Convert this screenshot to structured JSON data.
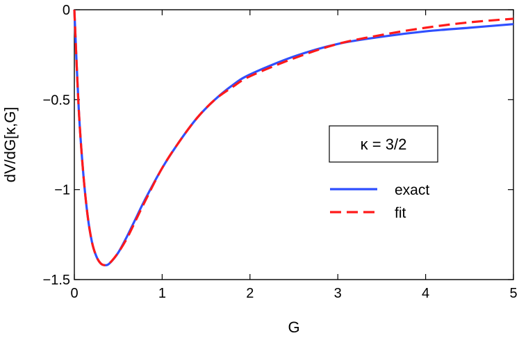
{
  "chart_data": {
    "type": "line",
    "title": "",
    "xlabel": "G",
    "ylabel": "dV/dG[κ,G]",
    "xlim": [
      0,
      5
    ],
    "ylim": [
      -1.5,
      0
    ],
    "x_ticks": [
      0,
      1,
      2,
      3,
      4,
      5
    ],
    "x_tick_labels": [
      "0",
      "1",
      "2",
      "3",
      "4",
      "5"
    ],
    "y_ticks": [
      0,
      -0.5,
      -1,
      -1.5
    ],
    "y_tick_labels": [
      "0",
      "−0.5",
      "−1",
      "−1.5"
    ],
    "grid": false,
    "legend_position": "right",
    "annotation": "κ = 3/2",
    "series": [
      {
        "name": "exact",
        "color": "#2f4fff",
        "style": "solid",
        "x": [
          0,
          0.05,
          0.1,
          0.15,
          0.2,
          0.25,
          0.3,
          0.35,
          0.4,
          0.5,
          0.6,
          0.7,
          0.8,
          1.0,
          1.2,
          1.4,
          1.6,
          1.8,
          2.0,
          2.5,
          3.0,
          3.5,
          4.0,
          4.5,
          5.0
        ],
        "y": [
          0,
          -0.55,
          -0.9,
          -1.14,
          -1.29,
          -1.37,
          -1.41,
          -1.42,
          -1.41,
          -1.35,
          -1.26,
          -1.16,
          -1.06,
          -0.88,
          -0.73,
          -0.6,
          -0.5,
          -0.42,
          -0.36,
          -0.26,
          -0.19,
          -0.15,
          -0.12,
          -0.1,
          -0.08
        ]
      },
      {
        "name": "fit",
        "color": "#ff1a1a",
        "style": "dashed",
        "x": [
          0,
          0.05,
          0.1,
          0.15,
          0.2,
          0.25,
          0.3,
          0.35,
          0.4,
          0.5,
          0.6,
          0.7,
          0.8,
          1.0,
          1.2,
          1.4,
          1.6,
          1.8,
          2.0,
          2.5,
          3.0,
          3.5,
          4.0,
          4.5,
          5.0
        ],
        "y": [
          0,
          -0.55,
          -0.9,
          -1.14,
          -1.29,
          -1.37,
          -1.41,
          -1.42,
          -1.41,
          -1.35,
          -1.27,
          -1.17,
          -1.07,
          -0.88,
          -0.73,
          -0.6,
          -0.5,
          -0.43,
          -0.37,
          -0.27,
          -0.19,
          -0.14,
          -0.1,
          -0.07,
          -0.05
        ]
      }
    ]
  }
}
